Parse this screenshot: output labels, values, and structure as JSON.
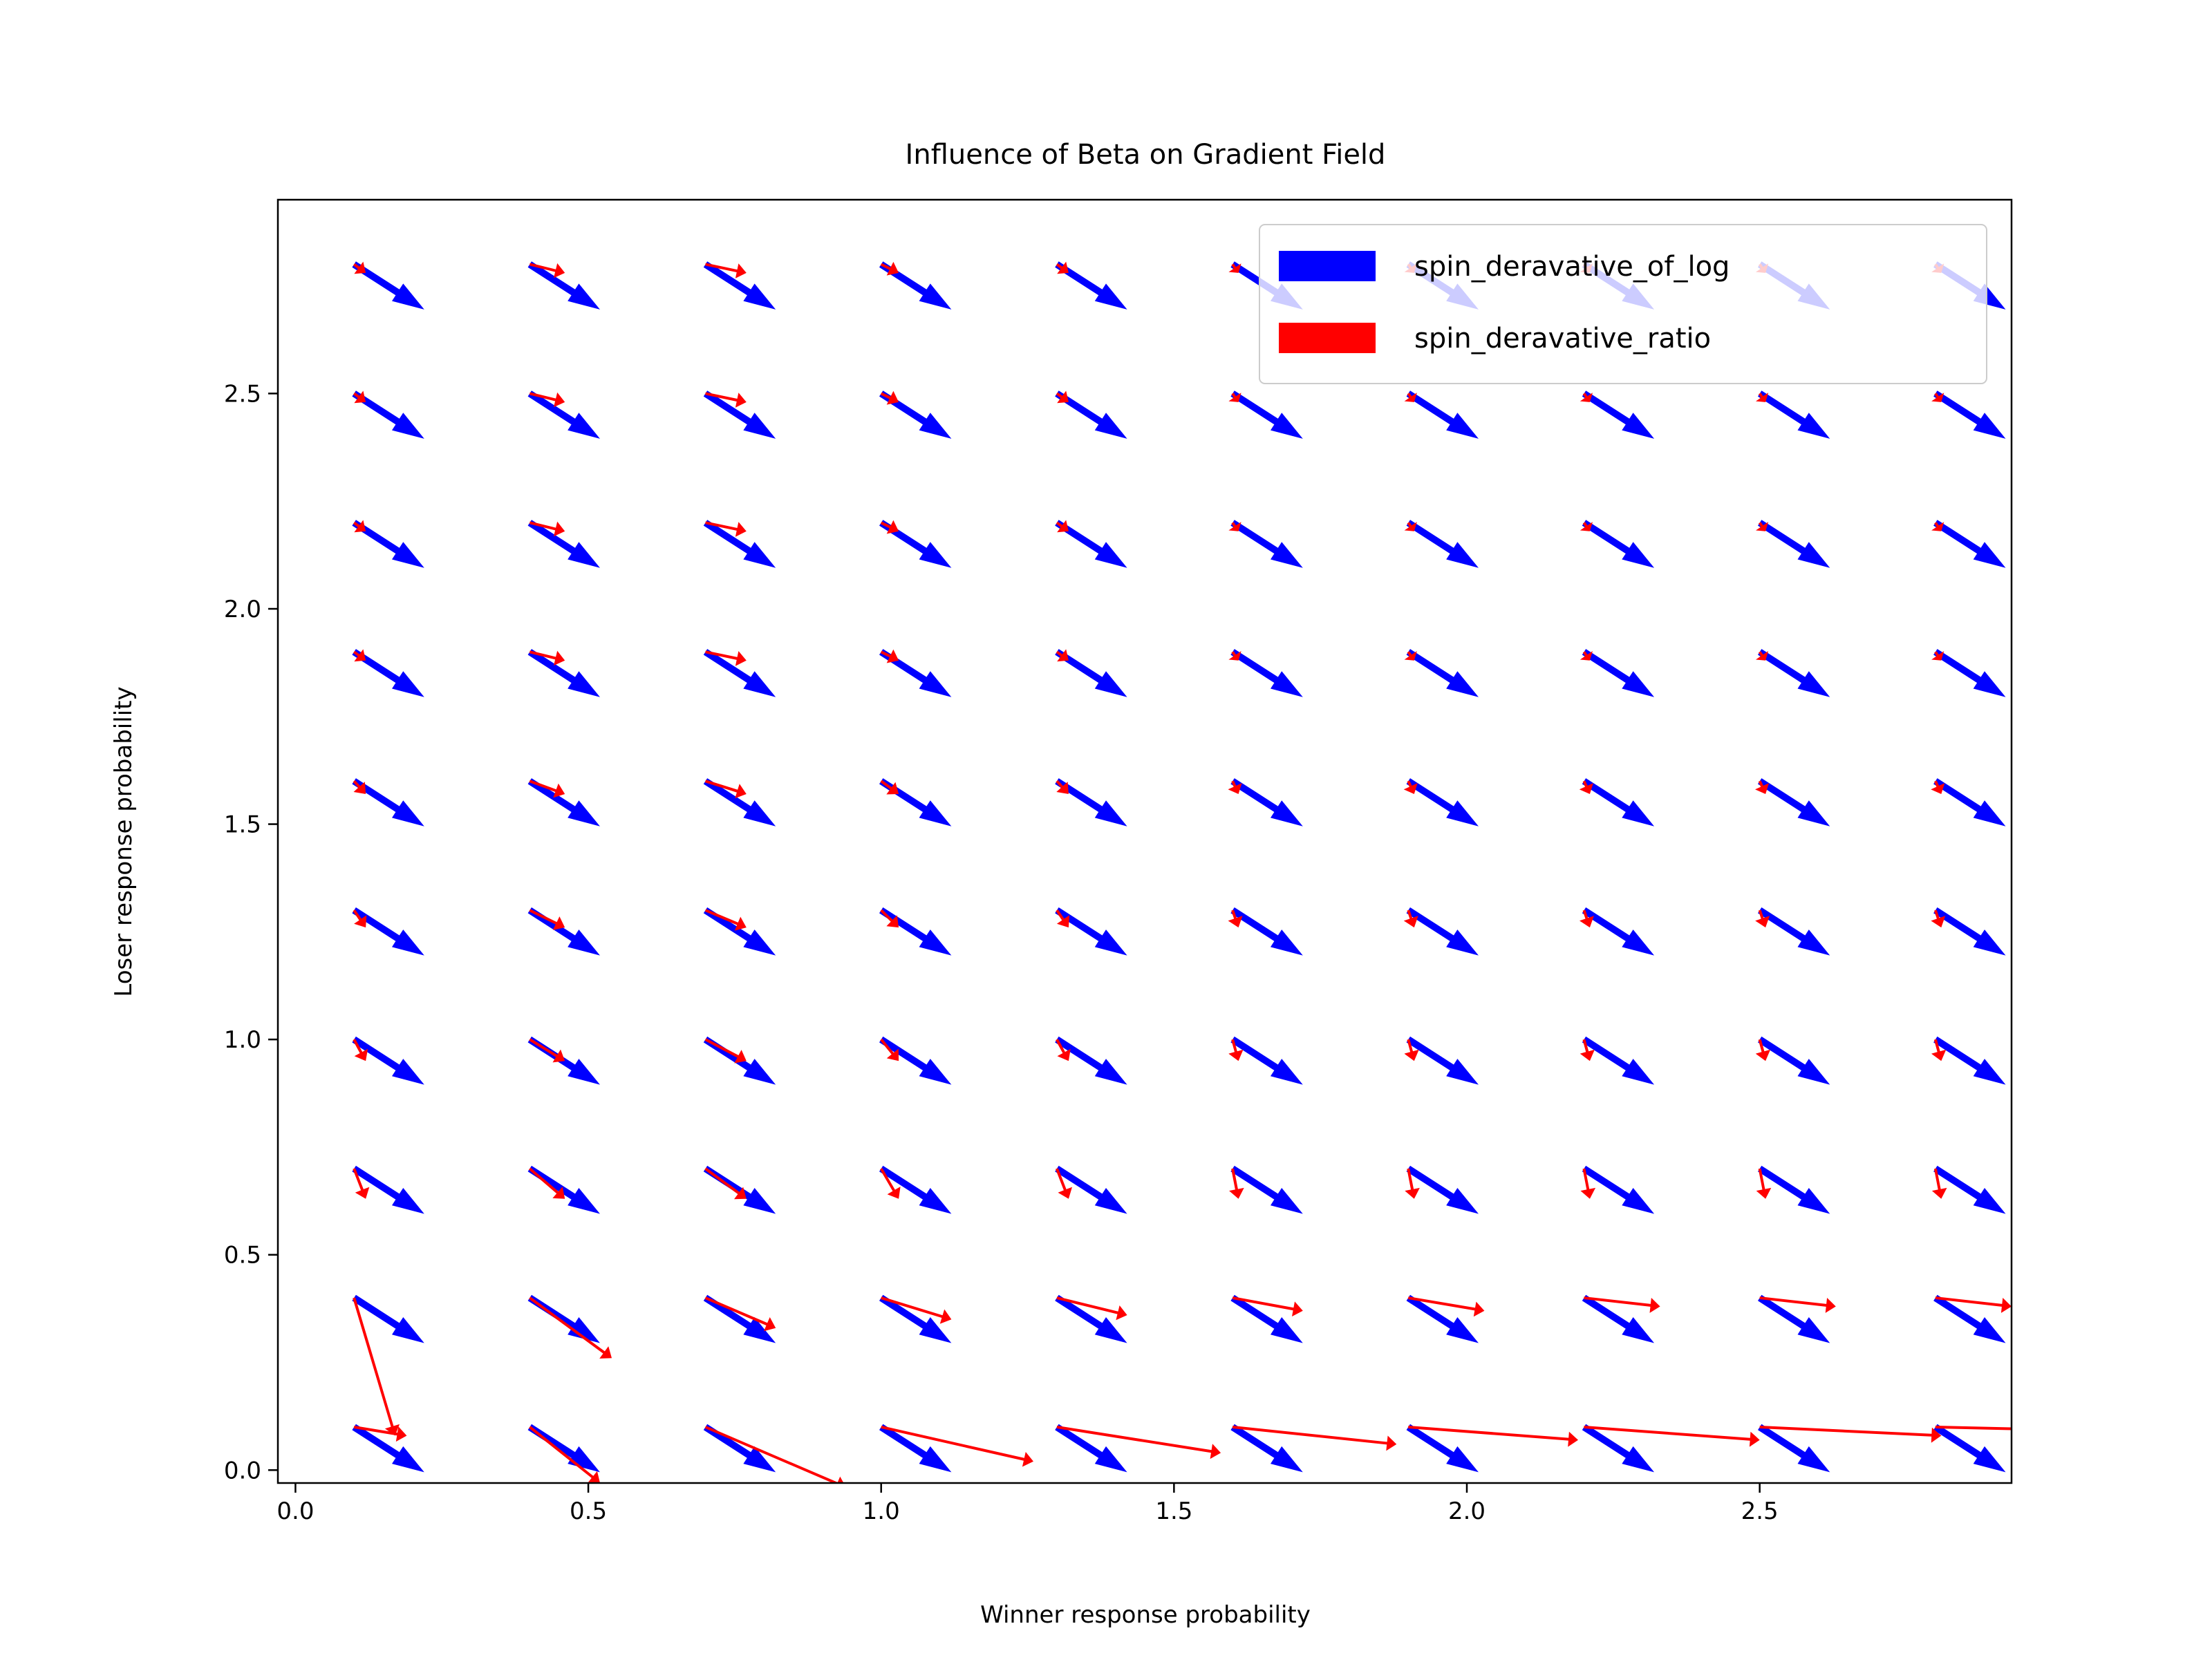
{
  "chart_data": {
    "type": "quiver",
    "title": "Influence of Beta on Gradient Field",
    "xlabel": "Winner response probability",
    "ylabel": "Loser response probability",
    "xlim": [
      -0.03,
      2.93
    ],
    "ylim": [
      -0.03,
      2.95
    ],
    "xticks": [
      0.0,
      0.5,
      1.0,
      1.5,
      2.0,
      2.5
    ],
    "yticks": [
      0.0,
      0.5,
      1.0,
      1.5,
      2.0,
      2.5
    ],
    "xtick_labels": [
      "0.0",
      "0.5",
      "1.0",
      "1.5",
      "2.0",
      "2.5"
    ],
    "ytick_labels": [
      "0.0",
      "0.5",
      "1.0",
      "1.5",
      "2.0",
      "2.5"
    ],
    "grid": false,
    "legend_position": "top-right",
    "grid_points": {
      "x": [
        0.1,
        0.4,
        0.7,
        1.0,
        1.3,
        1.6,
        1.9,
        2.2,
        2.5,
        2.8
      ],
      "y": [
        0.1,
        0.4,
        0.7,
        1.0,
        1.3,
        1.6,
        1.9,
        2.2,
        2.5,
        2.8
      ]
    },
    "series": [
      {
        "name": "spin_deravative_of_log",
        "color": "#0000ff",
        "vectors_note_u": 0.12,
        "u": 0.12,
        "v": -0.105
      },
      {
        "name": "spin_deravative_ratio",
        "color": "#ff0000",
        "u_by_column": [
          0.02,
          0.06,
          0.07,
          0.03,
          0.02,
          0.01,
          0.01,
          0.01,
          0.01,
          0.01
        ],
        "v_by_row": [
          -0.09,
          -0.08,
          -0.07,
          -0.05,
          -0.04,
          -0.03,
          -0.02,
          -0.02,
          -0.02,
          -0.02
        ],
        "bottom_row_endpoints_x": [
          0.19,
          0.52,
          0.94,
          1.26,
          1.58,
          1.88,
          2.19,
          2.5,
          2.81,
          3.12
        ],
        "bottom_row_endpoints_y": [
          0.08,
          -0.03,
          -0.04,
          0.02,
          0.04,
          0.06,
          0.07,
          0.07,
          0.08,
          0.09
        ],
        "second_row_endpoints_x": [
          0.17,
          0.54,
          0.82,
          1.12,
          1.42,
          1.72,
          2.03,
          2.33,
          2.63,
          2.93
        ],
        "second_row_endpoints_y": [
          0.08,
          0.26,
          0.33,
          0.35,
          0.36,
          0.37,
          0.37,
          0.38,
          0.38,
          0.38
        ]
      }
    ]
  }
}
